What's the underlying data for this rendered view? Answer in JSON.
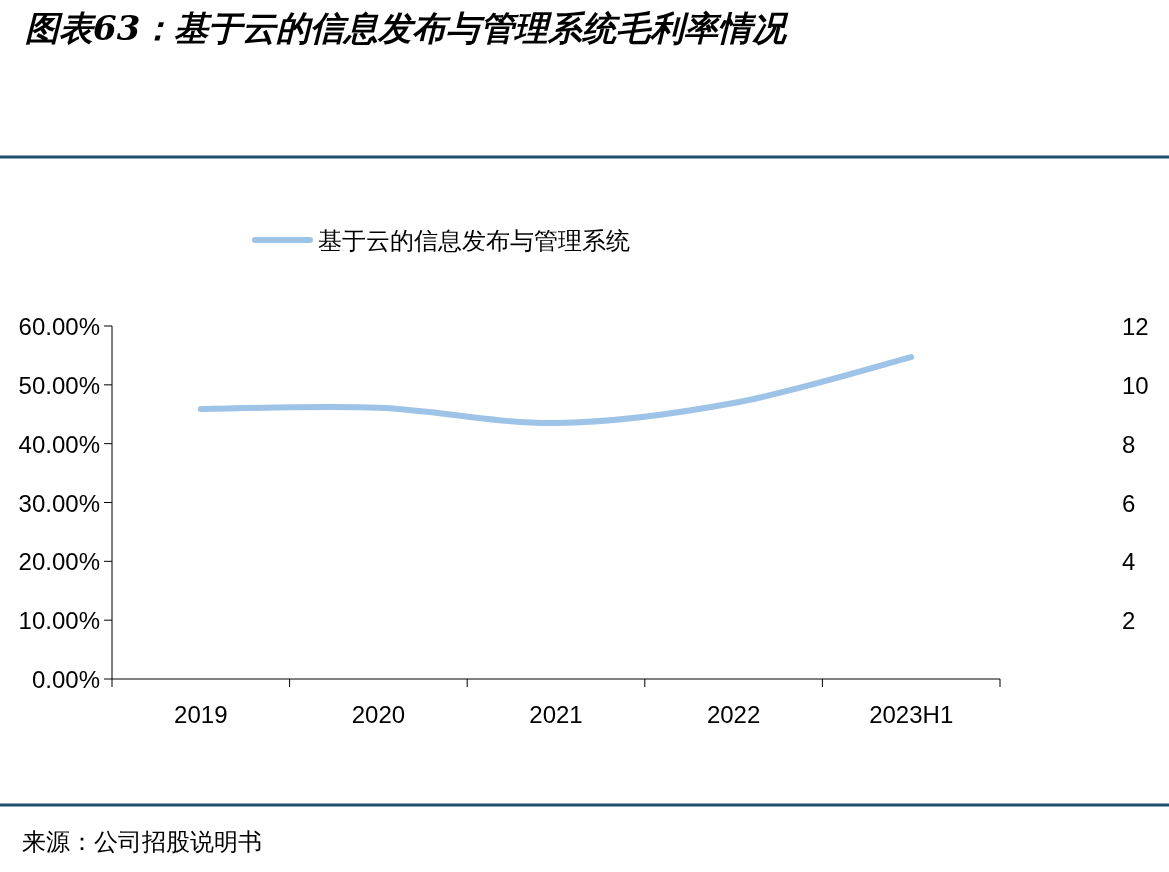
{
  "chart_data": {
    "type": "line",
    "title": "图表63：基于云的信息发布与管理系统毛利率情况",
    "categories": [
      "2019",
      "2020",
      "2021",
      "2022",
      "2023H1"
    ],
    "series": [
      {
        "name": "基于云的信息发布与管理系统",
        "color": "#9dc3e6",
        "values": [
          45.9,
          46.1,
          43.5,
          46.9,
          54.7
        ]
      }
    ],
    "ylim": [
      0,
      60
    ],
    "yticks": [
      {
        "value": 0,
        "label": "0.00%"
      },
      {
        "value": 10,
        "label": "10.00%"
      },
      {
        "value": 20,
        "label": "20.00%"
      },
      {
        "value": 30,
        "label": "30.00%"
      },
      {
        "value": 40,
        "label": "40.00%"
      },
      {
        "value": 50,
        "label": "50.00%"
      },
      {
        "value": 60,
        "label": "60.00%"
      }
    ],
    "y2lim": [
      0,
      12
    ],
    "y2ticks": [
      2,
      4,
      6,
      8,
      10,
      12
    ],
    "legend": "top",
    "grid": false,
    "marker": "none",
    "line_style": "solid",
    "annotations": [
      "来源：公司招股说明书"
    ]
  }
}
